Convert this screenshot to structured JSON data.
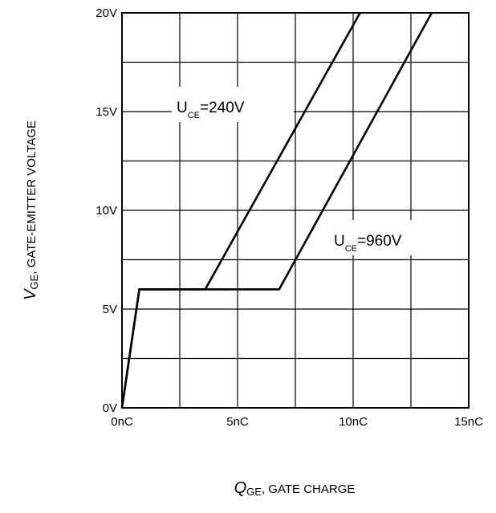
{
  "chart_data": {
    "type": "line",
    "xlabel": {
      "symbol": "Q",
      "subscript": "GE",
      "text": ", GATE CHARGE"
    },
    "ylabel": {
      "symbol": "V",
      "subscript": "GE",
      "text": ",  GATE-EMITTER VOLTAGE"
    },
    "xlim": [
      0,
      15
    ],
    "ylim": [
      0,
      20
    ],
    "x_ticks": [
      "0nC",
      "5nC",
      "10nC",
      "15nC"
    ],
    "y_ticks": [
      "0V",
      "5V",
      "10V",
      "15V",
      "20V"
    ],
    "grid": true,
    "series": [
      {
        "label": {
          "main": "U",
          "subscript": "CE",
          "suffix": "=240V"
        },
        "x": [
          0,
          0.75,
          3.6,
          10.3
        ],
        "y": [
          0,
          6,
          6,
          20
        ]
      },
      {
        "label": {
          "main": "U",
          "subscript": "CE",
          "suffix": "=960V"
        },
        "x": [
          0,
          0.75,
          6.8,
          13.4
        ],
        "y": [
          0,
          6,
          6,
          20
        ]
      }
    ]
  }
}
